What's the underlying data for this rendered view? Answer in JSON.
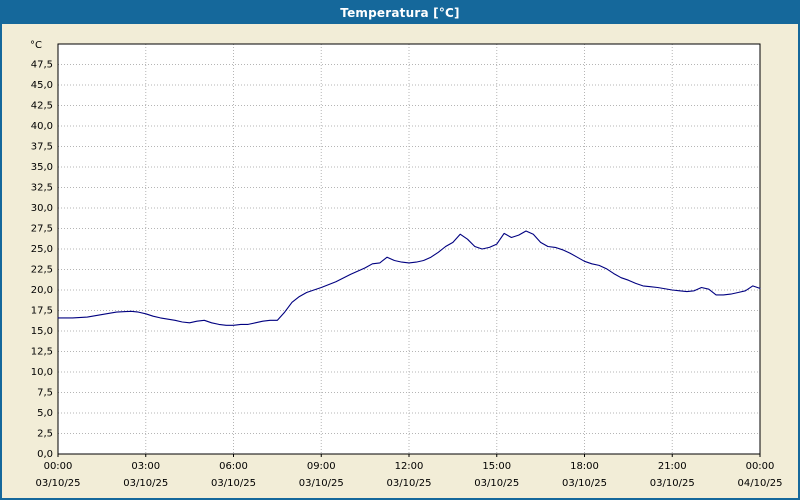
{
  "window": {
    "title": "Temperatura [°C]"
  },
  "colors": {
    "titlebar": "#15689b",
    "frame": "#15689b",
    "background": "#f2edd7",
    "plot_bg": "#ffffff",
    "grid": "#b5b5b5",
    "line": "#000080",
    "plot_border": "#000000",
    "title_text": "#ffffff",
    "tick_text": "#000000"
  },
  "chart_data": {
    "type": "line",
    "title": "Temperatura [°C]",
    "ylabel": "°C",
    "xlabel": "",
    "xlim": [
      0,
      24
    ],
    "ylim": [
      0,
      50
    ],
    "ytick_step": 2.5,
    "grid": "dotted",
    "legend": "none",
    "yticks": [
      {
        "value": 47.5,
        "label": "47,5"
      },
      {
        "value": 45.0,
        "label": "45,0"
      },
      {
        "value": 42.5,
        "label": "42,5"
      },
      {
        "value": 40.0,
        "label": "40,0"
      },
      {
        "value": 37.5,
        "label": "37,5"
      },
      {
        "value": 35.0,
        "label": "35,0"
      },
      {
        "value": 32.5,
        "label": "32,5"
      },
      {
        "value": 30.0,
        "label": "30,0"
      },
      {
        "value": 27.5,
        "label": "27,5"
      },
      {
        "value": 25.0,
        "label": "25,0"
      },
      {
        "value": 22.5,
        "label": "22,5"
      },
      {
        "value": 20.0,
        "label": "20,0"
      },
      {
        "value": 17.5,
        "label": "17,5"
      },
      {
        "value": 15.0,
        "label": "15,0"
      },
      {
        "value": 12.5,
        "label": "12,5"
      },
      {
        "value": 10.0,
        "label": "10,0"
      },
      {
        "value": 7.5,
        "label": "7,5"
      },
      {
        "value": 5.0,
        "label": "5,0"
      },
      {
        "value": 2.5,
        "label": "2,5"
      },
      {
        "value": 0.0,
        "label": "0,0"
      }
    ],
    "xticks": [
      {
        "hour": 0,
        "time": "00:00",
        "date": "03/10/25"
      },
      {
        "hour": 3,
        "time": "03:00",
        "date": "03/10/25"
      },
      {
        "hour": 6,
        "time": "06:00",
        "date": "03/10/25"
      },
      {
        "hour": 9,
        "time": "09:00",
        "date": "03/10/25"
      },
      {
        "hour": 12,
        "time": "12:00",
        "date": "03/10/25"
      },
      {
        "hour": 15,
        "time": "15:00",
        "date": "03/10/25"
      },
      {
        "hour": 18,
        "time": "18:00",
        "date": "03/10/25"
      },
      {
        "hour": 21,
        "time": "21:00",
        "date": "03/10/25"
      },
      {
        "hour": 24,
        "time": "00:00",
        "date": "04/10/25"
      }
    ],
    "series": [
      {
        "name": "Temperatura",
        "color": "#000080",
        "x": [
          0,
          0.5,
          1,
          1.5,
          2,
          2.5,
          2.75,
          3,
          3.25,
          3.5,
          4,
          4.25,
          4.5,
          4.75,
          5,
          5.25,
          5.5,
          5.75,
          6,
          6.25,
          6.5,
          6.75,
          7,
          7.25,
          7.5,
          7.75,
          8,
          8.25,
          8.5,
          8.75,
          9,
          9.5,
          10,
          10.25,
          10.5,
          10.75,
          11,
          11.25,
          11.5,
          11.75,
          12,
          12.25,
          12.5,
          12.75,
          13,
          13.25,
          13.5,
          13.75,
          14,
          14.25,
          14.5,
          14.75,
          15,
          15.25,
          15.5,
          15.75,
          16,
          16.25,
          16.5,
          16.75,
          17,
          17.25,
          17.5,
          17.75,
          18,
          18.25,
          18.5,
          18.75,
          19,
          19.25,
          19.5,
          19.75,
          20,
          20.25,
          20.5,
          21,
          21.25,
          21.5,
          21.75,
          22,
          22.25,
          22.5,
          22.75,
          23,
          23.25,
          23.5,
          23.75,
          24
        ],
        "y": [
          16.6,
          16.6,
          16.7,
          17.0,
          17.3,
          17.4,
          17.3,
          17.1,
          16.8,
          16.6,
          16.3,
          16.1,
          16.0,
          16.2,
          16.3,
          16.0,
          15.8,
          15.7,
          15.7,
          15.8,
          15.8,
          16.0,
          16.2,
          16.3,
          16.3,
          17.3,
          18.5,
          19.2,
          19.7,
          20.0,
          20.3,
          21.0,
          21.9,
          22.3,
          22.7,
          23.2,
          23.3,
          24.0,
          23.6,
          23.4,
          23.3,
          23.4,
          23.6,
          24.0,
          24.6,
          25.3,
          25.8,
          26.8,
          26.2,
          25.3,
          25.0,
          25.2,
          25.6,
          26.9,
          26.4,
          26.7,
          27.2,
          26.8,
          25.8,
          25.3,
          25.2,
          24.9,
          24.5,
          24.0,
          23.5,
          23.2,
          23.0,
          22.6,
          22.0,
          21.5,
          21.2,
          20.8,
          20.5,
          20.4,
          20.3,
          20.0,
          19.9,
          19.8,
          19.9,
          20.3,
          20.1,
          19.4,
          19.4,
          19.5,
          19.7,
          19.9,
          20.5,
          20.2
        ]
      }
    ]
  }
}
